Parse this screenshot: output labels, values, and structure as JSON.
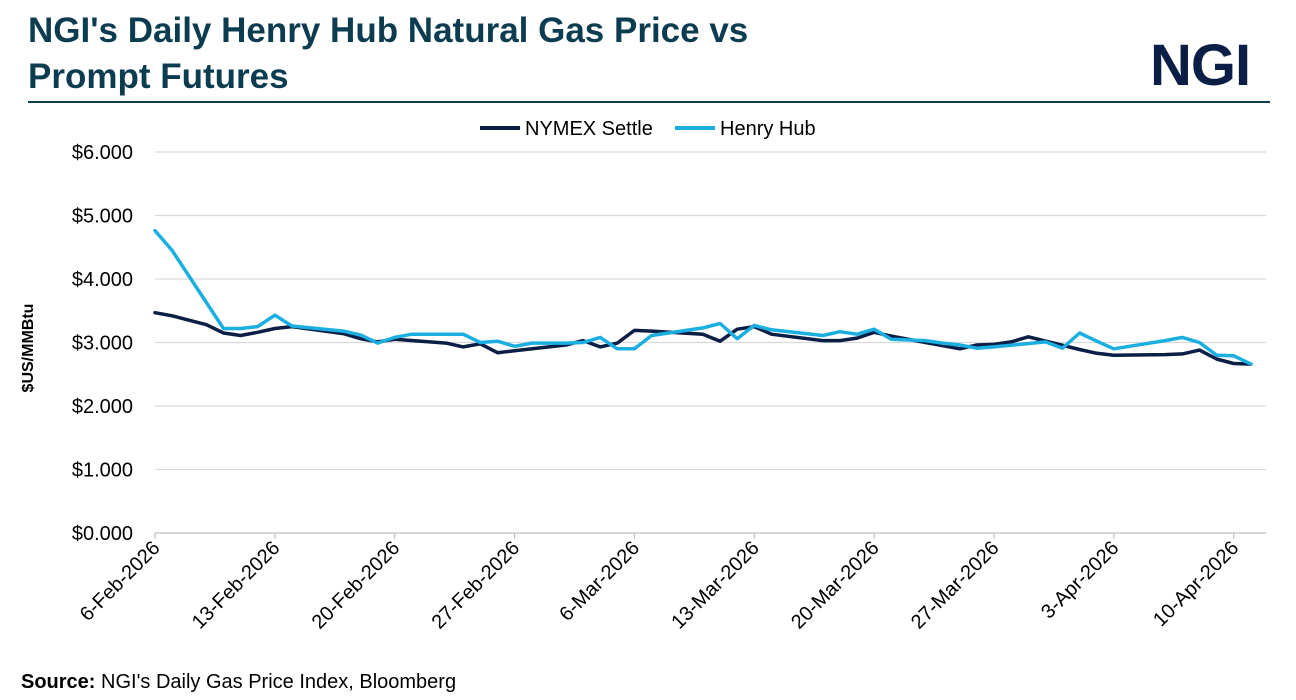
{
  "header": {
    "title_line1": "NGI's Daily Henry Hub Natural Gas Price vs",
    "title_line2": "Prompt Futures",
    "logo": "NGI"
  },
  "footer": {
    "source_label": "Source:",
    "source_text": "NGI's Daily Gas Price Index,  Bloomberg"
  },
  "colors": {
    "title": "#0c3c50",
    "nymex": "#0b1e46",
    "henry_hub": "#1aafe0",
    "grid": "#d9d9d9"
  },
  "chart_data": {
    "type": "line",
    "ylabel": "$US/MMBtu",
    "xlabel": "",
    "ylim": [
      0,
      6
    ],
    "yticks": [
      0,
      1,
      2,
      3,
      4,
      5,
      6
    ],
    "ytick_labels": [
      "$0.000",
      "$1.000",
      "$2.000",
      "$3.000",
      "$4.000",
      "$5.000",
      "$6.000"
    ],
    "x_start": "2026-02-06",
    "xticks": [
      "2026-02-06",
      "2026-02-13",
      "2026-02-20",
      "2026-02-27",
      "2026-03-06",
      "2026-03-13",
      "2026-03-20",
      "2026-03-27",
      "2026-04-03",
      "2026-04-10"
    ],
    "xtick_labels": [
      "6-Feb-2026",
      "13-Feb-2026",
      "20-Feb-2026",
      "27-Feb-2026",
      "6-Mar-2026",
      "13-Mar-2026",
      "20-Mar-2026",
      "27-Mar-2026",
      "3-Apr-2026",
      "10-Apr-2026"
    ],
    "legend_position": "top-center",
    "grid": true,
    "series": [
      {
        "name": "NYMEX Settle",
        "color": "#0b1e46",
        "points": [
          [
            "2026-02-06",
            3.47
          ],
          [
            "2026-02-07",
            3.42
          ],
          [
            "2026-02-09",
            3.28
          ],
          [
            "2026-02-10",
            3.15
          ],
          [
            "2026-02-11",
            3.11
          ],
          [
            "2026-02-12",
            3.16
          ],
          [
            "2026-02-13",
            3.22
          ],
          [
            "2026-02-14",
            3.25
          ],
          [
            "2026-02-17",
            3.14
          ],
          [
            "2026-02-18",
            3.06
          ],
          [
            "2026-02-19",
            3.01
          ],
          [
            "2026-02-20",
            3.05
          ],
          [
            "2026-02-23",
            2.99
          ],
          [
            "2026-02-24",
            2.93
          ],
          [
            "2026-02-25",
            2.98
          ],
          [
            "2026-02-26",
            2.84
          ],
          [
            "2026-02-27",
            2.87
          ],
          [
            "2026-03-01",
            2.93
          ],
          [
            "2026-03-02",
            2.96
          ],
          [
            "2026-03-03",
            3.03
          ],
          [
            "2026-03-04",
            2.93
          ],
          [
            "2026-03-05",
            2.99
          ],
          [
            "2026-03-06",
            3.19
          ],
          [
            "2026-03-07",
            3.18
          ],
          [
            "2026-03-10",
            3.13
          ],
          [
            "2026-03-11",
            3.02
          ],
          [
            "2026-03-12",
            3.21
          ],
          [
            "2026-03-13",
            3.25
          ],
          [
            "2026-03-14",
            3.13
          ],
          [
            "2026-03-17",
            3.03
          ],
          [
            "2026-03-18",
            3.03
          ],
          [
            "2026-03-19",
            3.07
          ],
          [
            "2026-03-20",
            3.16
          ],
          [
            "2026-03-21",
            3.1
          ],
          [
            "2026-03-23",
            3.0
          ],
          [
            "2026-03-24",
            2.95
          ],
          [
            "2026-03-25",
            2.9
          ],
          [
            "2026-03-26",
            2.96
          ],
          [
            "2026-03-27",
            2.97
          ],
          [
            "2026-03-28",
            3.01
          ],
          [
            "2026-03-29",
            3.09
          ],
          [
            "2026-04-01",
            2.89
          ],
          [
            "2026-04-02",
            2.83
          ],
          [
            "2026-04-03",
            2.8
          ],
          [
            "2026-04-06",
            2.81
          ],
          [
            "2026-04-07",
            2.82
          ],
          [
            "2026-04-08",
            2.88
          ],
          [
            "2026-04-09",
            2.74
          ],
          [
            "2026-04-10",
            2.67
          ],
          [
            "2026-04-11",
            2.66
          ]
        ]
      },
      {
        "name": "Henry Hub",
        "color": "#1aafe0",
        "points": [
          [
            "2026-02-06",
            4.76
          ],
          [
            "2026-02-07",
            4.45
          ],
          [
            "2026-02-10",
            3.22
          ],
          [
            "2026-02-11",
            3.22
          ],
          [
            "2026-02-12",
            3.25
          ],
          [
            "2026-02-13",
            3.43
          ],
          [
            "2026-02-14",
            3.26
          ],
          [
            "2026-02-17",
            3.18
          ],
          [
            "2026-02-18",
            3.12
          ],
          [
            "2026-02-19",
            2.99
          ],
          [
            "2026-02-20",
            3.08
          ],
          [
            "2026-02-21",
            3.13
          ],
          [
            "2026-02-24",
            3.13
          ],
          [
            "2026-02-25",
            3.0
          ],
          [
            "2026-02-26",
            3.02
          ],
          [
            "2026-02-27",
            2.94
          ],
          [
            "2026-02-28",
            2.99
          ],
          [
            "2026-03-02",
            2.99
          ],
          [
            "2026-03-03",
            3.0
          ],
          [
            "2026-03-04",
            3.08
          ],
          [
            "2026-03-05",
            2.9
          ],
          [
            "2026-03-06",
            2.9
          ],
          [
            "2026-03-07",
            3.11
          ],
          [
            "2026-03-10",
            3.23
          ],
          [
            "2026-03-11",
            3.3
          ],
          [
            "2026-03-12",
            3.06
          ],
          [
            "2026-03-13",
            3.27
          ],
          [
            "2026-03-14",
            3.2
          ],
          [
            "2026-03-17",
            3.11
          ],
          [
            "2026-03-18",
            3.17
          ],
          [
            "2026-03-19",
            3.13
          ],
          [
            "2026-03-20",
            3.21
          ],
          [
            "2026-03-21",
            3.05
          ],
          [
            "2026-03-23",
            3.03
          ],
          [
            "2026-03-24",
            2.99
          ],
          [
            "2026-03-25",
            2.96
          ],
          [
            "2026-03-26",
            2.91
          ],
          [
            "2026-03-27",
            2.93
          ],
          [
            "2026-03-30",
            3.01
          ],
          [
            "2026-03-31",
            2.91
          ],
          [
            "2026-04-01",
            3.15
          ],
          [
            "2026-04-02",
            3.02
          ],
          [
            "2026-04-03",
            2.9
          ],
          [
            "2026-04-06",
            3.03
          ],
          [
            "2026-04-07",
            3.08
          ],
          [
            "2026-04-08",
            3.0
          ],
          [
            "2026-04-09",
            2.8
          ],
          [
            "2026-04-10",
            2.79
          ],
          [
            "2026-04-11",
            2.66
          ]
        ]
      }
    ]
  }
}
